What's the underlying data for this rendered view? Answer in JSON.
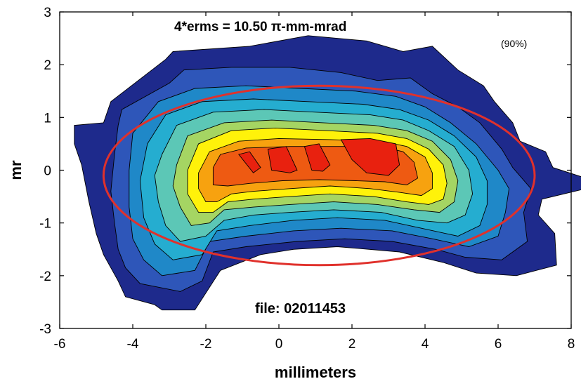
{
  "chart_data": {
    "type": "contour",
    "xlabel": "millimeters",
    "ylabel": "mr",
    "xlim": [
      -6,
      8
    ],
    "ylim": [
      -3,
      3
    ],
    "x_ticks": [
      -6,
      -4,
      -2,
      0,
      2,
      4,
      6,
      8
    ],
    "y_ticks": [
      -3,
      -2,
      -1,
      0,
      1,
      2,
      3
    ],
    "x_tick_labels": [
      "-6",
      "-4",
      "-2",
      "0",
      "2",
      "4",
      "6",
      "8"
    ],
    "y_tick_labels": [
      "-3",
      "-2",
      "-1",
      "0",
      "1",
      "2",
      "3"
    ],
    "grid": false,
    "annotations": {
      "emittance": "4*erms = 10.50  π-mm-mrad",
      "percent": "(90%)",
      "file": "file: 02011453"
    },
    "ellipse": {
      "cx": 1.1,
      "cy": -0.1,
      "rx": 5.9,
      "ry": 1.7,
      "color": "#e0312c"
    },
    "contour_levels": [
      {
        "color": "#1e2a8c",
        "polygons": [
          [
            [
              -5.6,
              0.85
            ],
            [
              -4.8,
              0.9
            ],
            [
              -4.6,
              1.3
            ],
            [
              -3.1,
              2.1
            ],
            [
              -2.9,
              2.25
            ],
            [
              -0.8,
              2.35
            ],
            [
              0.8,
              2.55
            ],
            [
              2.4,
              2.45
            ],
            [
              3.4,
              2.25
            ],
            [
              4.2,
              2.35
            ],
            [
              4.9,
              1.9
            ],
            [
              5.6,
              1.6
            ],
            [
              5.9,
              1.3
            ],
            [
              6.4,
              0.9
            ],
            [
              6.6,
              0.55
            ],
            [
              7.3,
              0.35
            ],
            [
              7.5,
              0.05
            ],
            [
              8.4,
              -0.15
            ],
            [
              8.4,
              -0.35
            ],
            [
              7.2,
              -0.55
            ],
            [
              7.1,
              -0.85
            ],
            [
              7.55,
              -1.2
            ],
            [
              7.6,
              -1.8
            ],
            [
              6.5,
              -2.0
            ],
            [
              5.4,
              -1.95
            ],
            [
              4.5,
              -1.75
            ],
            [
              3.3,
              -1.55
            ],
            [
              1.6,
              -1.45
            ],
            [
              0.4,
              -1.5
            ],
            [
              -0.5,
              -1.6
            ],
            [
              -1.6,
              -1.9
            ],
            [
              -2.3,
              -2.65
            ],
            [
              -3.2,
              -2.65
            ],
            [
              -3.4,
              -2.55
            ],
            [
              -4.2,
              -2.4
            ],
            [
              -4.4,
              -2.1
            ],
            [
              -4.8,
              -1.6
            ],
            [
              -5.0,
              -1.2
            ],
            [
              -5.2,
              -0.6
            ],
            [
              -5.4,
              0.1
            ],
            [
              -5.6,
              0.5
            ]
          ]
        ]
      },
      {
        "color": "#2e56b9",
        "polygons": [
          [
            [
              -4.4,
              0.85
            ],
            [
              -4.3,
              1.15
            ],
            [
              -3.0,
              1.65
            ],
            [
              -2.6,
              1.9
            ],
            [
              -1.3,
              1.95
            ],
            [
              0.3,
              1.95
            ],
            [
              1.7,
              1.85
            ],
            [
              2.7,
              1.7
            ],
            [
              3.6,
              1.75
            ],
            [
              4.2,
              1.45
            ],
            [
              4.9,
              1.2
            ],
            [
              5.5,
              0.9
            ],
            [
              6.1,
              0.4
            ],
            [
              6.4,
              0.05
            ],
            [
              6.9,
              -0.35
            ],
            [
              6.7,
              -0.8
            ],
            [
              6.8,
              -1.35
            ],
            [
              6.1,
              -1.7
            ],
            [
              5.1,
              -1.65
            ],
            [
              4.3,
              -1.5
            ],
            [
              3.1,
              -1.35
            ],
            [
              1.8,
              -1.3
            ],
            [
              0.5,
              -1.35
            ],
            [
              -0.9,
              -1.45
            ],
            [
              -1.8,
              -1.55
            ],
            [
              -2.1,
              -2.1
            ],
            [
              -2.7,
              -2.3
            ],
            [
              -3.8,
              -2.15
            ],
            [
              -4.2,
              -1.85
            ],
            [
              -4.4,
              -1.5
            ],
            [
              -4.5,
              -1.0
            ],
            [
              -4.6,
              -0.4
            ],
            [
              -4.5,
              0.3
            ]
          ]
        ]
      },
      {
        "color": "#1f88c8",
        "polygons": [
          [
            [
              -4.0,
              0.7
            ],
            [
              -3.3,
              1.3
            ],
            [
              -2.3,
              1.55
            ],
            [
              -0.9,
              1.6
            ],
            [
              0.6,
              1.55
            ],
            [
              2.1,
              1.5
            ],
            [
              3.2,
              1.4
            ],
            [
              4.0,
              1.2
            ],
            [
              4.7,
              0.9
            ],
            [
              5.4,
              0.5
            ],
            [
              6.0,
              0.0
            ],
            [
              6.3,
              -0.35
            ],
            [
              6.2,
              -0.8
            ],
            [
              6.0,
              -1.25
            ],
            [
              5.2,
              -1.45
            ],
            [
              4.2,
              -1.3
            ],
            [
              3.1,
              -1.15
            ],
            [
              1.7,
              -1.1
            ],
            [
              0.4,
              -1.15
            ],
            [
              -0.9,
              -1.25
            ],
            [
              -1.9,
              -1.35
            ],
            [
              -2.3,
              -1.9
            ],
            [
              -3.2,
              -2.0
            ],
            [
              -3.7,
              -1.7
            ],
            [
              -4.0,
              -1.3
            ],
            [
              -4.1,
              -0.7
            ],
            [
              -4.1,
              0.0
            ]
          ]
        ]
      },
      {
        "color": "#25add0",
        "polygons": [
          [
            [
              -3.6,
              0.5
            ],
            [
              -3.1,
              1.05
            ],
            [
              -2.1,
              1.3
            ],
            [
              -0.7,
              1.35
            ],
            [
              0.8,
              1.3
            ],
            [
              2.3,
              1.25
            ],
            [
              3.3,
              1.15
            ],
            [
              4.1,
              0.95
            ],
            [
              4.8,
              0.65
            ],
            [
              5.4,
              0.25
            ],
            [
              5.7,
              -0.2
            ],
            [
              5.7,
              -0.65
            ],
            [
              5.5,
              -1.05
            ],
            [
              4.9,
              -1.25
            ],
            [
              3.9,
              -1.1
            ],
            [
              2.9,
              -0.95
            ],
            [
              1.6,
              -0.9
            ],
            [
              0.4,
              -0.95
            ],
            [
              -0.8,
              -1.05
            ],
            [
              -1.7,
              -1.15
            ],
            [
              -2.1,
              -1.6
            ],
            [
              -2.9,
              -1.7
            ],
            [
              -3.4,
              -1.4
            ],
            [
              -3.7,
              -0.9
            ],
            [
              -3.8,
              -0.2
            ]
          ]
        ]
      },
      {
        "color": "#5cc7b6",
        "polygons": [
          [
            [
              -3.2,
              0.3
            ],
            [
              -2.8,
              0.85
            ],
            [
              -1.8,
              1.1
            ],
            [
              -0.4,
              1.15
            ],
            [
              1.0,
              1.1
            ],
            [
              2.5,
              1.05
            ],
            [
              3.4,
              0.95
            ],
            [
              4.1,
              0.75
            ],
            [
              4.8,
              0.45
            ],
            [
              5.2,
              0.0
            ],
            [
              5.3,
              -0.45
            ],
            [
              5.1,
              -0.85
            ],
            [
              4.6,
              -1.0
            ],
            [
              3.8,
              -0.95
            ],
            [
              2.8,
              -0.8
            ],
            [
              1.5,
              -0.75
            ],
            [
              0.3,
              -0.8
            ],
            [
              -0.7,
              -0.85
            ],
            [
              -1.5,
              -0.95
            ],
            [
              -2.0,
              -1.25
            ],
            [
              -2.7,
              -1.35
            ],
            [
              -3.1,
              -1.05
            ],
            [
              -3.3,
              -0.6
            ],
            [
              -3.4,
              -0.1
            ]
          ]
        ]
      },
      {
        "color": "#a5d563",
        "polygons": [
          [
            [
              -2.8,
              0.1
            ],
            [
              -2.5,
              0.65
            ],
            [
              -1.5,
              0.9
            ],
            [
              -0.2,
              0.95
            ],
            [
              1.2,
              0.9
            ],
            [
              2.6,
              0.85
            ],
            [
              3.5,
              0.75
            ],
            [
              4.2,
              0.55
            ],
            [
              4.7,
              0.2
            ],
            [
              4.9,
              -0.2
            ],
            [
              4.8,
              -0.6
            ],
            [
              4.4,
              -0.8
            ],
            [
              3.7,
              -0.75
            ],
            [
              2.7,
              -0.65
            ],
            [
              1.5,
              -0.6
            ],
            [
              0.3,
              -0.65
            ],
            [
              -0.7,
              -0.7
            ],
            [
              -1.5,
              -0.75
            ],
            [
              -1.9,
              -1.0
            ],
            [
              -2.4,
              -1.05
            ],
            [
              -2.7,
              -0.7
            ],
            [
              -2.9,
              -0.3
            ]
          ]
        ]
      },
      {
        "color": "#fff20a",
        "polygons": [
          [
            [
              -2.5,
              0.0
            ],
            [
              -2.2,
              0.5
            ],
            [
              -1.3,
              0.75
            ],
            [
              -0.1,
              0.8
            ],
            [
              1.3,
              0.75
            ],
            [
              2.7,
              0.7
            ],
            [
              3.5,
              0.6
            ],
            [
              4.1,
              0.4
            ],
            [
              4.5,
              0.1
            ],
            [
              4.6,
              -0.25
            ],
            [
              4.5,
              -0.55
            ],
            [
              4.1,
              -0.65
            ],
            [
              3.5,
              -0.6
            ],
            [
              2.6,
              -0.5
            ],
            [
              1.4,
              -0.45
            ],
            [
              0.3,
              -0.5
            ],
            [
              -0.7,
              -0.55
            ],
            [
              -1.4,
              -0.6
            ],
            [
              -1.8,
              -0.8
            ],
            [
              -2.2,
              -0.8
            ],
            [
              -2.5,
              -0.45
            ]
          ]
        ]
      },
      {
        "color": "#f7a20f",
        "polygons": [
          [
            [
              -2.2,
              -0.05
            ],
            [
              -1.9,
              0.35
            ],
            [
              -1.1,
              0.55
            ],
            [
              0.0,
              0.6
            ],
            [
              1.4,
              0.58
            ],
            [
              2.8,
              0.55
            ],
            [
              3.5,
              0.45
            ],
            [
              4.0,
              0.25
            ],
            [
              4.2,
              -0.05
            ],
            [
              4.2,
              -0.35
            ],
            [
              3.9,
              -0.48
            ],
            [
              3.3,
              -0.42
            ],
            [
              2.5,
              -0.35
            ],
            [
              1.4,
              -0.3
            ],
            [
              0.3,
              -0.35
            ],
            [
              -0.7,
              -0.4
            ],
            [
              -1.3,
              -0.45
            ],
            [
              -1.7,
              -0.6
            ],
            [
              -2.0,
              -0.6
            ],
            [
              -2.2,
              -0.35
            ]
          ]
        ]
      },
      {
        "color": "#ee5a12",
        "polygons": [
          [
            [
              -1.8,
              0.05
            ],
            [
              -1.6,
              0.3
            ],
            [
              -0.9,
              0.42
            ],
            [
              0.3,
              0.45
            ],
            [
              1.6,
              0.45
            ],
            [
              2.8,
              0.45
            ],
            [
              3.4,
              0.35
            ],
            [
              3.7,
              0.15
            ],
            [
              3.8,
              -0.15
            ],
            [
              3.5,
              -0.28
            ],
            [
              2.9,
              -0.22
            ],
            [
              2.1,
              -0.2
            ],
            [
              1.1,
              -0.18
            ],
            [
              0.1,
              -0.2
            ],
            [
              -0.8,
              -0.25
            ],
            [
              -1.4,
              -0.3
            ],
            [
              -1.8,
              -0.28
            ]
          ]
        ]
      },
      {
        "color": "#e8210f",
        "polygons": [
          [
            [
              -1.1,
              0.3
            ],
            [
              -0.8,
              0.35
            ],
            [
              -0.5,
              0.05
            ],
            [
              -0.7,
              -0.05
            ]
          ],
          [
            [
              -0.3,
              0.4
            ],
            [
              0.2,
              0.45
            ],
            [
              0.5,
              0.0
            ],
            [
              0.3,
              -0.05
            ],
            [
              -0.2,
              0.0
            ]
          ],
          [
            [
              0.7,
              0.45
            ],
            [
              1.1,
              0.5
            ],
            [
              1.4,
              0.1
            ],
            [
              1.2,
              -0.02
            ],
            [
              0.9,
              0.0
            ]
          ],
          [
            [
              1.7,
              0.58
            ],
            [
              2.5,
              0.6
            ],
            [
              3.2,
              0.5
            ],
            [
              3.3,
              0.1
            ],
            [
              3.0,
              -0.1
            ],
            [
              2.4,
              -0.05
            ],
            [
              2.0,
              0.2
            ]
          ]
        ]
      }
    ]
  }
}
